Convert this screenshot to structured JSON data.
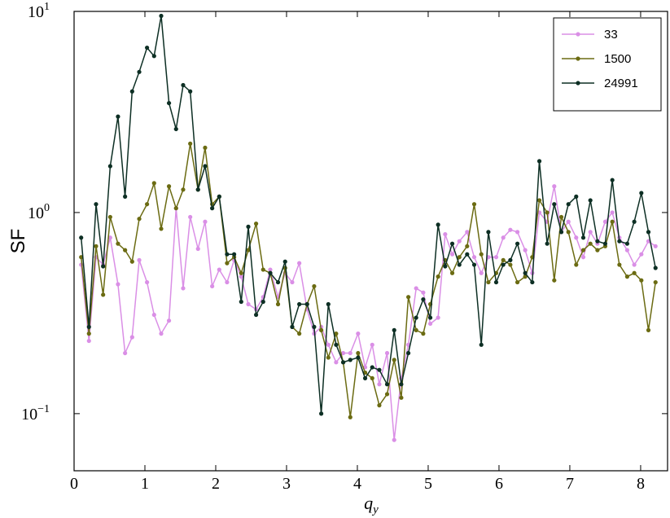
{
  "chart_data": {
    "type": "line",
    "ylabel": "SF",
    "xlabel": {
      "main": "q",
      "sub": "y"
    },
    "log_y": true,
    "xlim": [
      0,
      8.38
    ],
    "ylim": [
      0.052,
      10
    ],
    "xticks": [
      0,
      1,
      2,
      3,
      4,
      5,
      6,
      7,
      8
    ],
    "yticks": [
      {
        "value": 0.1,
        "label": "10",
        "exponent": "−1"
      },
      {
        "value": 1,
        "label": "10",
        "exponent": "0"
      },
      {
        "value": 10,
        "label": "10",
        "exponent": "1"
      }
    ],
    "legend": "upper right",
    "x": [
      0.1,
      0.21,
      0.31,
      0.41,
      0.51,
      0.62,
      0.72,
      0.82,
      0.92,
      1.03,
      1.13,
      1.23,
      1.34,
      1.44,
      1.54,
      1.64,
      1.75,
      1.85,
      1.95,
      2.05,
      2.16,
      2.26,
      2.36,
      2.46,
      2.57,
      2.67,
      2.77,
      2.88,
      2.98,
      3.08,
      3.18,
      3.29,
      3.39,
      3.49,
      3.59,
      3.7,
      3.8,
      3.9,
      4.01,
      4.11,
      4.21,
      4.31,
      4.42,
      4.52,
      4.62,
      4.72,
      4.83,
      4.93,
      5.03,
      5.14,
      5.24,
      5.34,
      5.44,
      5.55,
      5.65,
      5.75,
      5.85,
      5.96,
      6.06,
      6.16,
      6.26,
      6.37,
      6.47,
      6.57,
      6.68,
      6.78,
      6.88,
      6.98,
      7.09,
      7.19,
      7.29,
      7.39,
      7.5,
      7.6,
      7.7,
      7.81,
      7.91,
      8.01,
      8.11,
      8.21
    ],
    "series": [
      {
        "name": "33",
        "color": "#da8fe6",
        "values": [
          0.55,
          0.23,
          0.6,
          0.55,
          0.75,
          0.44,
          0.2,
          0.24,
          0.58,
          0.45,
          0.31,
          0.25,
          0.29,
          1.05,
          0.42,
          0.95,
          0.66,
          0.9,
          0.43,
          0.52,
          0.45,
          0.58,
          0.48,
          0.35,
          0.33,
          0.38,
          0.52,
          0.38,
          0.5,
          0.45,
          0.56,
          0.33,
          0.25,
          0.27,
          0.22,
          0.18,
          0.2,
          0.2,
          0.25,
          0.17,
          0.22,
          0.14,
          0.2,
          0.074,
          0.15,
          0.22,
          0.42,
          0.4,
          0.28,
          0.3,
          0.78,
          0.62,
          0.72,
          0.8,
          0.6,
          0.5,
          0.6,
          0.6,
          0.75,
          0.82,
          0.8,
          0.65,
          0.5,
          1.0,
          0.9,
          1.35,
          0.8,
          0.9,
          0.75,
          0.6,
          0.8,
          0.7,
          0.9,
          1.0,
          0.75,
          0.65,
          0.55,
          0.62,
          0.72,
          0.68
        ]
      },
      {
        "name": "1500",
        "color": "#6b6b12",
        "values": [
          0.6,
          0.25,
          0.68,
          0.39,
          0.95,
          0.7,
          0.65,
          0.57,
          0.93,
          1.1,
          1.4,
          0.83,
          1.35,
          1.05,
          1.3,
          2.2,
          1.3,
          2.1,
          1.1,
          1.2,
          0.56,
          0.6,
          0.5,
          0.65,
          0.88,
          0.52,
          0.5,
          0.35,
          0.53,
          0.27,
          0.25,
          0.35,
          0.43,
          0.26,
          0.19,
          0.25,
          0.18,
          0.096,
          0.2,
          0.16,
          0.15,
          0.11,
          0.125,
          0.185,
          0.12,
          0.38,
          0.26,
          0.25,
          0.35,
          0.48,
          0.58,
          0.5,
          0.6,
          0.68,
          1.1,
          0.62,
          0.45,
          0.5,
          0.58,
          0.55,
          0.45,
          0.48,
          0.6,
          1.15,
          1.0,
          0.46,
          0.95,
          0.8,
          0.55,
          0.65,
          0.7,
          0.65,
          0.68,
          0.9,
          0.55,
          0.48,
          0.5,
          0.46,
          0.26,
          0.45
        ]
      },
      {
        "name": "24991",
        "color": "#0d2f24",
        "values": [
          0.75,
          0.27,
          1.1,
          0.54,
          1.7,
          3.0,
          1.2,
          4.0,
          5.0,
          6.6,
          6.0,
          9.5,
          3.5,
          2.6,
          4.3,
          4.0,
          1.3,
          1.7,
          1.05,
          1.2,
          0.62,
          0.62,
          0.36,
          0.85,
          0.31,
          0.36,
          0.5,
          0.45,
          0.57,
          0.27,
          0.35,
          0.35,
          0.27,
          0.1,
          0.35,
          0.22,
          0.18,
          0.185,
          0.19,
          0.15,
          0.17,
          0.165,
          0.14,
          0.26,
          0.14,
          0.2,
          0.3,
          0.37,
          0.3,
          0.87,
          0.54,
          0.7,
          0.55,
          0.62,
          0.55,
          0.22,
          0.8,
          0.45,
          0.55,
          0.58,
          0.7,
          0.5,
          0.45,
          1.8,
          0.7,
          1.1,
          0.8,
          1.1,
          1.2,
          0.75,
          1.15,
          0.72,
          0.7,
          1.45,
          0.72,
          0.7,
          0.9,
          1.25,
          0.8,
          0.53
        ]
      }
    ]
  }
}
